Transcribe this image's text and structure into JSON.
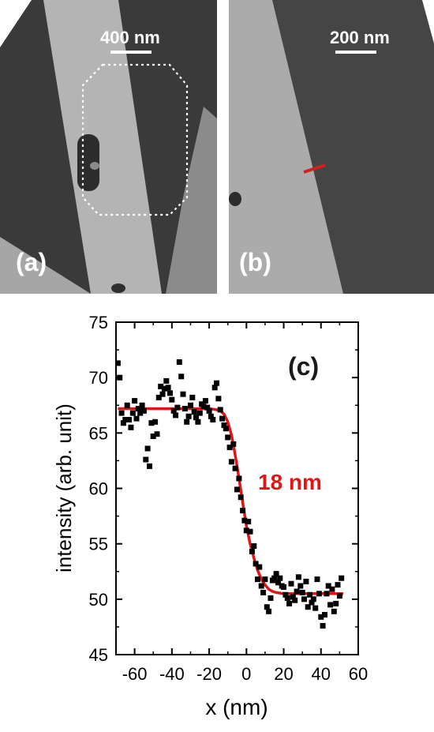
{
  "panels": {
    "a": {
      "label": "(a)",
      "scale_label": "400 nm"
    },
    "b": {
      "label": "(b)",
      "scale_label": "200 nm"
    }
  },
  "colors": {
    "fit_line": "#e01515",
    "data_points": "#000000",
    "tem_background": "#353535",
    "tem_bright_region": "#b5b5b5",
    "profile_marker": "#d22020"
  },
  "chart_data": {
    "type": "scatter",
    "panel_label": "(c)",
    "xlabel": "x (nm)",
    "ylabel": "intensity (arb. unit)",
    "xlim": [
      -70,
      60
    ],
    "ylim": [
      45,
      75
    ],
    "xticks": [
      -60,
      -40,
      -20,
      0,
      20,
      40,
      60
    ],
    "yticks": [
      45,
      50,
      55,
      60,
      65,
      70,
      75
    ],
    "grid": false,
    "annotation": "18 nm",
    "series": [
      {
        "kind": "points",
        "x": [
          -69,
          -68,
          -67,
          -66,
          -65,
          -64,
          -63,
          -62,
          -61,
          -60,
          -59,
          -58,
          -57,
          -56,
          -55,
          -54,
          -53,
          -52,
          -51,
          -50,
          -49,
          -48,
          -47,
          -46,
          -45,
          -44,
          -43,
          -42,
          -41,
          -40,
          -39,
          -38,
          -37,
          -36,
          -35,
          -34,
          -33,
          -32,
          -31,
          -30,
          -29,
          -28,
          -27,
          -26,
          -25,
          -24,
          -23,
          -22,
          -21,
          -20,
          -19,
          -18,
          -17,
          -16,
          -15,
          -14,
          -13,
          -12,
          -11,
          -10,
          -9,
          -8,
          -7,
          -6,
          -5,
          -4,
          -3,
          -2,
          -1,
          0,
          1,
          2,
          3,
          4,
          5,
          6,
          7,
          8,
          9,
          10,
          11,
          12,
          13,
          14,
          15,
          16,
          17,
          18,
          19,
          20,
          21,
          22,
          23,
          24,
          25,
          26,
          27,
          28,
          29,
          30,
          31,
          32,
          33,
          34,
          35,
          36,
          37,
          38,
          39,
          40,
          41,
          42,
          43,
          44,
          45,
          46,
          47,
          48,
          49,
          50,
          51
        ],
        "y": [
          71.3,
          70.0,
          66.8,
          65.9,
          66.2,
          67.5,
          66.2,
          65.5,
          66.8,
          67.9,
          66.3,
          67.2,
          66.8,
          67.5,
          67.0,
          62.6,
          63.6,
          62.0,
          65.9,
          64.7,
          66.0,
          64.9,
          68.2,
          69.2,
          68.5,
          69.0,
          69.7,
          69.1,
          68.6,
          68.0,
          67.0,
          66.6,
          67.3,
          71.4,
          70.1,
          68.5,
          67.2,
          66.0,
          66.5,
          67.5,
          68.2,
          66.9,
          66.4,
          66.0,
          66.8,
          67.6,
          67.4,
          67.9,
          67.3,
          67.0,
          66.5,
          66.2,
          69.1,
          69.5,
          68.1,
          67.1,
          66.3,
          65.7,
          65.4,
          64.6,
          63.7,
          62.4,
          64.0,
          61.8,
          59.9,
          60.9,
          59.2,
          58.0,
          57.1,
          56.2,
          57.0,
          56.1,
          54.3,
          54.8,
          53.2,
          51.8,
          52.9,
          51.2,
          50.6,
          51.8,
          49.3,
          48.9,
          50.1,
          51.7,
          51.9,
          52.3,
          51.5,
          51.9,
          51.2,
          51.1,
          50.4,
          50.1,
          49.6,
          51.4,
          50.2,
          49.9,
          50.7,
          52.0,
          51.2,
          50.6,
          50.0,
          51.6,
          49.3,
          50.4,
          49.7,
          50.0,
          49.2,
          51.8,
          50.5,
          48.4,
          47.6,
          48.6,
          50.5,
          51.2,
          49.5,
          50.9,
          48.9,
          49.6,
          51.3,
          50.3,
          51.9
        ]
      },
      {
        "kind": "fit",
        "x": [
          -69,
          -60,
          -50,
          -40,
          -30,
          -20,
          -16,
          -14,
          -12,
          -10,
          -8,
          -6,
          -4,
          -2,
          0,
          2,
          4,
          6,
          8,
          10,
          12,
          14,
          16,
          20,
          30,
          40,
          52
        ],
        "y": [
          67.2,
          67.2,
          67.2,
          67.2,
          67.2,
          67.2,
          67.1,
          67.0,
          66.7,
          66.0,
          64.8,
          63.0,
          60.9,
          58.7,
          56.6,
          55.0,
          53.7,
          52.6,
          51.8,
          51.3,
          50.9,
          50.7,
          50.6,
          50.5,
          50.5,
          50.5,
          50.5
        ]
      }
    ]
  }
}
